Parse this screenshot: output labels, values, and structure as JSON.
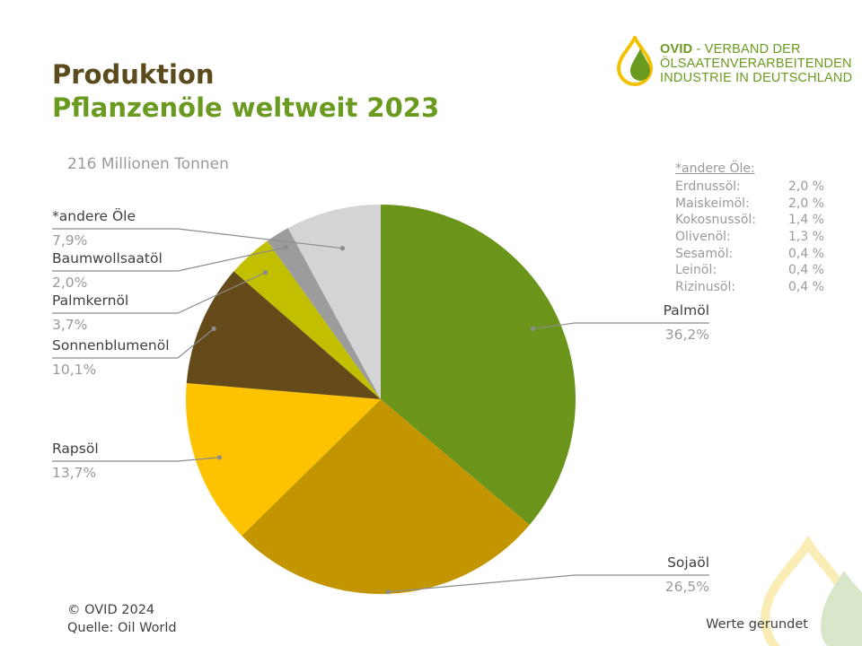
{
  "header": {
    "title": "Produktion",
    "subtitle": "Pflanzenöle weltweit 2023"
  },
  "logo": {
    "brand": "OVID",
    "line1_rest": " - VERBAND DER",
    "line2": "ÖLSAATENVERARBEITENDEN",
    "line3": "INDUSTRIE IN DEUTSCHLAND"
  },
  "total_label": "216 Millionen Tonnen",
  "others_table": {
    "title": "*andere Öle:",
    "rows": [
      {
        "name": "Erdnussöl:",
        "value": "2,0 %"
      },
      {
        "name": "Maiskeimöl:",
        "value": "2,0 %"
      },
      {
        "name": "Kokosnussöl:",
        "value": "1,4 %"
      },
      {
        "name": "Olivenöl:",
        "value": "1,3 %"
      },
      {
        "name": "Sesamöl:",
        "value": "0,4 %"
      },
      {
        "name": "Leinöl:",
        "value": "0,4 %"
      },
      {
        "name": "Rizinusöl:",
        "value": "0,4 %"
      }
    ]
  },
  "colors": {
    "title_brown": "#5b4a1c",
    "title_green": "#6a9a1f",
    "leader_line": "#8c8c8c"
  },
  "chart_data": {
    "type": "pie",
    "title": "Pflanzenöle weltweit 2023",
    "start": "12 o'clock",
    "direction": "clockwise",
    "slices": [
      {
        "label": "Palmöl",
        "display": "36,2%",
        "value": 36.2,
        "color": "#6b941b"
      },
      {
        "label": "Sojaöl",
        "display": "26,5%",
        "value": 26.5,
        "color": "#c39500"
      },
      {
        "label": "Rapsöl",
        "display": "13,7%",
        "value": 13.7,
        "color": "#fdc300"
      },
      {
        "label": "Sonnenblumenöl",
        "display": "10,1%",
        "value": 10.1,
        "color": "#654a1a"
      },
      {
        "label": "Palmkernöl",
        "display": "3,7%",
        "value": 3.7,
        "color": "#c1bf00"
      },
      {
        "label": "Baumwollsaatöl",
        "display": "2,0%",
        "value": 2.0,
        "color": "#9c9c9c"
      },
      {
        "label": "*andere Öle",
        "display": "7,9%",
        "value": 7.9,
        "color": "#d4d4d6"
      }
    ]
  },
  "footer": {
    "copyright": "© OVID 2024",
    "source": "Quelle: Oil World",
    "note": "Werte gerundet"
  }
}
